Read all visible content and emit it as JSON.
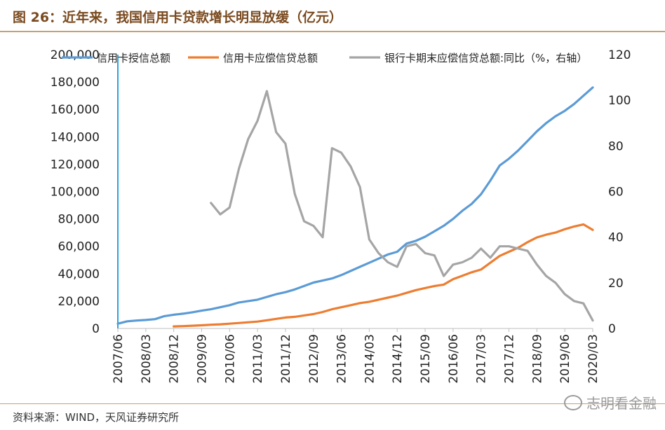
{
  "header": {
    "title": "图 26：近年来，我国信用卡贷款增长明显放缓（亿元）"
  },
  "footer": {
    "source": "资料来源：WIND，天风证券研究所",
    "watermark": "志明看金融"
  },
  "chart_data": {
    "type": "line",
    "title": "图 26：近年来，我国信用卡贷款增长明显放缓（亿元）",
    "xlabel": "",
    "ylabel": "",
    "x_tick_labels": [
      "2007/06",
      "2008/03",
      "2008/12",
      "2009/09",
      "2010/06",
      "2011/03",
      "2011/12",
      "2012/09",
      "2013/06",
      "2014/03",
      "2014/12",
      "2015/09",
      "2016/06",
      "2017/03",
      "2017/12",
      "2018/09",
      "2019/06",
      "2020/03"
    ],
    "ylim_left": [
      0,
      200000
    ],
    "yticks_left": [
      "0",
      "20,000",
      "40,000",
      "60,000",
      "80,000",
      "100,000",
      "120,000",
      "140,000",
      "160,000",
      "180,000",
      "200,000"
    ],
    "ylim_right": [
      0,
      120
    ],
    "yticks_right": [
      "0",
      "20",
      "40",
      "60",
      "80",
      "100",
      "120"
    ],
    "grid": false,
    "legend_position": "top",
    "series": [
      {
        "name": "信用卡授信总额",
        "axis": "left",
        "color": "#5b9bd5",
        "x": [
          "2007/06",
          "2007/09",
          "2007/12",
          "2008/03",
          "2008/06",
          "2008/09",
          "2008/12",
          "2009/03",
          "2009/06",
          "2009/09",
          "2009/12",
          "2010/03",
          "2010/06",
          "2010/09",
          "2010/12",
          "2011/03",
          "2011/06",
          "2011/09",
          "2011/12",
          "2012/03",
          "2012/06",
          "2012/09",
          "2012/12",
          "2013/03",
          "2013/06",
          "2013/09",
          "2013/12",
          "2014/03",
          "2014/06",
          "2014/09",
          "2014/12",
          "2015/03",
          "2015/06",
          "2015/09",
          "2015/12",
          "2016/03",
          "2016/06",
          "2016/09",
          "2016/12",
          "2017/03",
          "2017/06",
          "2017/09",
          "2017/12",
          "2018/03",
          "2018/06",
          "2018/09",
          "2018/12",
          "2019/03",
          "2019/06",
          "2019/09",
          "2019/12",
          "2020/03"
        ],
        "values": [
          3500,
          5200,
          5800,
          6200,
          6800,
          9000,
          10000,
          10800,
          11800,
          13000,
          14000,
          15500,
          17000,
          19000,
          20000,
          21000,
          23000,
          25000,
          26500,
          28500,
          31000,
          33500,
          35000,
          36500,
          39000,
          42000,
          45000,
          48000,
          51000,
          54000,
          56000,
          62000,
          64000,
          67000,
          71000,
          75000,
          80000,
          86000,
          91000,
          98000,
          108000,
          119000,
          124000,
          130000,
          137000,
          144000,
          150000,
          155000,
          159000,
          164000,
          170000,
          176000
        ]
      },
      {
        "name": "信用卡应偿信贷总额",
        "axis": "left",
        "color": "#ed7d31",
        "x": [
          "2008/12",
          "2009/03",
          "2009/06",
          "2009/09",
          "2009/12",
          "2010/03",
          "2010/06",
          "2010/09",
          "2010/12",
          "2011/03",
          "2011/06",
          "2011/09",
          "2011/12",
          "2012/03",
          "2012/06",
          "2012/09",
          "2012/12",
          "2013/03",
          "2013/06",
          "2013/09",
          "2013/12",
          "2014/03",
          "2014/06",
          "2014/09",
          "2014/12",
          "2015/03",
          "2015/06",
          "2015/09",
          "2015/12",
          "2016/03",
          "2016/06",
          "2016/09",
          "2016/12",
          "2017/03",
          "2017/06",
          "2017/09",
          "2017/12",
          "2018/03",
          "2018/06",
          "2018/09",
          "2018/12",
          "2019/03",
          "2019/06",
          "2019/09",
          "2019/12",
          "2020/03"
        ],
        "values": [
          1500,
          1700,
          2000,
          2300,
          2700,
          3000,
          3500,
          4000,
          4500,
          5000,
          6000,
          7000,
          8000,
          8500,
          9500,
          10500,
          12000,
          14000,
          15500,
          17000,
          18500,
          19500,
          21000,
          22500,
          24000,
          26000,
          28000,
          29500,
          31000,
          32000,
          36000,
          38500,
          41000,
          43000,
          48000,
          53000,
          56000,
          59000,
          63000,
          66500,
          68500,
          70000,
          72500,
          74500,
          76000,
          72000
        ]
      },
      {
        "name": "银行卡期末应偿信贷总额:同比（%，右轴）",
        "axis": "right",
        "color": "#a5a5a5",
        "x": [
          "2009/12",
          "2010/03",
          "2010/06",
          "2010/09",
          "2010/12",
          "2011/03",
          "2011/06",
          "2011/09",
          "2011/12",
          "2012/03",
          "2012/06",
          "2012/09",
          "2012/12",
          "2013/03",
          "2013/06",
          "2013/09",
          "2013/12",
          "2014/03",
          "2014/06",
          "2014/09",
          "2014/12",
          "2015/03",
          "2015/06",
          "2015/09",
          "2015/12",
          "2016/03",
          "2016/06",
          "2016/09",
          "2016/12",
          "2017/03",
          "2017/06",
          "2017/09",
          "2017/12",
          "2018/03",
          "2018/06",
          "2018/09",
          "2018/12",
          "2019/03",
          "2019/06",
          "2019/09",
          "2019/12",
          "2020/03"
        ],
        "values": [
          55,
          50,
          53,
          70,
          83,
          91,
          104,
          86,
          81,
          59,
          47,
          45,
          40,
          79,
          77,
          71,
          62,
          39,
          33,
          29,
          27,
          36,
          37,
          33,
          32,
          23,
          28,
          29,
          31,
          35,
          31,
          36,
          36,
          35,
          34,
          28,
          23,
          20,
          15,
          12,
          11,
          3.5
        ]
      }
    ]
  }
}
